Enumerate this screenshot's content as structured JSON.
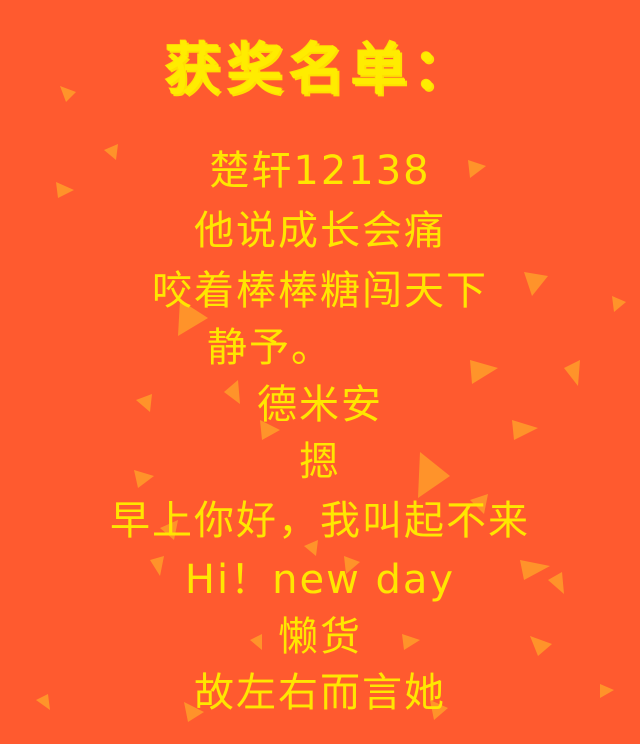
{
  "title": "获奖名单：",
  "winners": [
    "楚轩12138",
    "他说成长会痛",
    "咬着棒棒糖闯天下",
    "静予。",
    "德米安",
    "摁",
    "早上你好，我叫起不来",
    "Hi！new day",
    "懒货",
    "故左右而言她"
  ],
  "colors": {
    "background": "#ff5a2f",
    "text": "#ffe600",
    "triangle": "#ff9a2a"
  }
}
